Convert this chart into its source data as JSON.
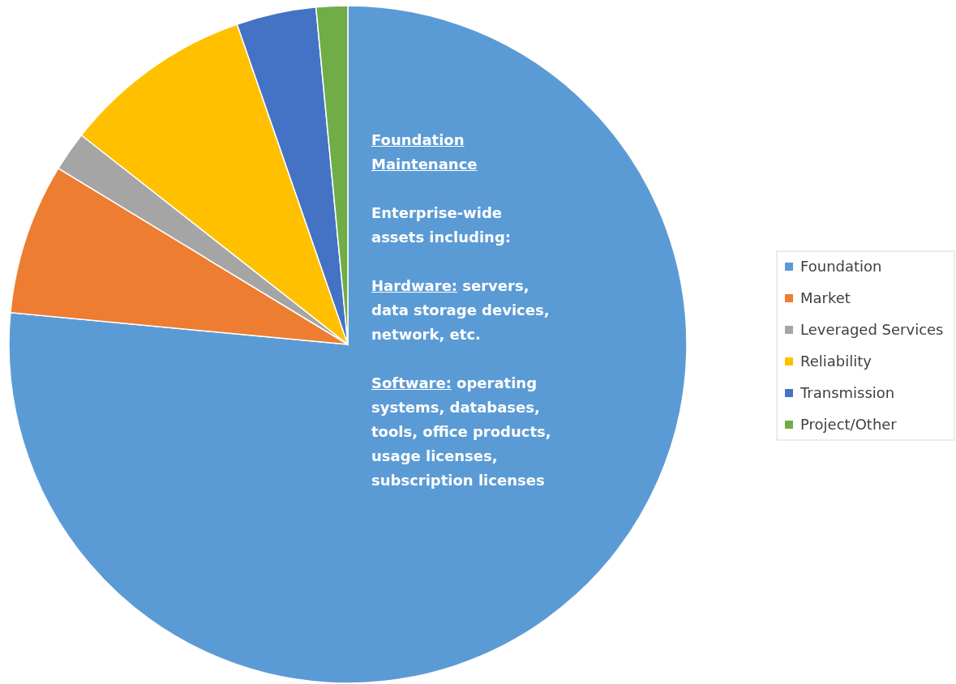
{
  "chart_data": {
    "type": "pie",
    "categories": [
      "Foundation",
      "Market",
      "Leveraged Services",
      "Reliability",
      "Transmission",
      "Project/Other"
    ],
    "values": [
      76.5,
      7.2,
      1.9,
      9.1,
      3.8,
      1.5
    ],
    "colors": [
      "#5b9bd5",
      "#ed7d31",
      "#a5a5a5",
      "#ffc000",
      "#4472c4",
      "#70ad47"
    ],
    "legend": "right",
    "annotations": [
      "Foundation Maintenance",
      "Enterprise-wide assets including:",
      "Hardware: servers, data storage devices, network, etc.",
      "Software: operating systems, databases, tools, office products, usage licenses, subscription licenses"
    ]
  }
}
